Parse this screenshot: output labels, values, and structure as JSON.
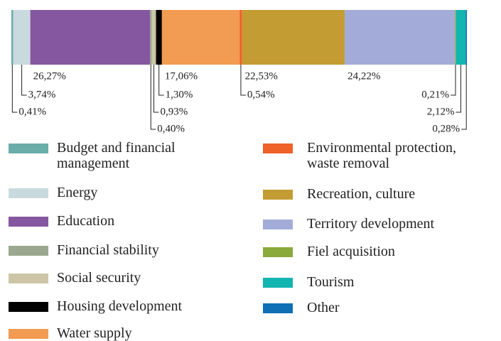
{
  "chart_data": {
    "type": "bar",
    "orientation": "horizontal",
    "stacked": true,
    "xlim": [
      0,
      100
    ],
    "series": [
      {
        "name": "Budget and financial\nmanagement",
        "color": "#6aada9",
        "values": [
          0.41
        ],
        "value_labels": [
          "0,41%"
        ]
      },
      {
        "name": "Energy",
        "color": "#c9dadf",
        "values": [
          3.74
        ],
        "value_labels": [
          "3,74%"
        ]
      },
      {
        "name": "Education",
        "color": "#8557a0",
        "values": [
          26.27
        ],
        "value_labels": [
          "26,27%"
        ]
      },
      {
        "name": "Financial stability",
        "color": "#9aa88f",
        "values": [
          0.4
        ],
        "value_labels": [
          "0,40%"
        ]
      },
      {
        "name": "Social security",
        "color": "#cdc5a8",
        "values": [
          0.93
        ],
        "value_labels": [
          "0,93%"
        ]
      },
      {
        "name": "Housing development",
        "color": "#000000",
        "values": [
          1.3
        ],
        "value_labels": [
          "1,30%"
        ]
      },
      {
        "name": "Water supply",
        "color": "#f29b52",
        "values": [
          17.06
        ],
        "value_labels": [
          "17,06%"
        ]
      },
      {
        "name": "Environmental protection,\nwaste removal",
        "color": "#ee6127",
        "values": [
          0.54
        ],
        "value_labels": [
          "0,54%"
        ]
      },
      {
        "name": "Recreation, culture",
        "color": "#c39d33",
        "values": [
          22.53
        ],
        "value_labels": [
          "22,53%"
        ]
      },
      {
        "name": "Territory development",
        "color": "#a3acd9",
        "values": [
          24.22
        ],
        "value_labels": [
          "24,22%"
        ]
      },
      {
        "name": "Fiel acquisition",
        "color": "#8aaa3b",
        "values": [
          0.21
        ],
        "value_labels": [
          "0,21%"
        ]
      },
      {
        "name": "Tourism",
        "color": "#12b5b0",
        "values": [
          2.12
        ],
        "value_labels": [
          "2,12%"
        ]
      },
      {
        "name": "Other",
        "color": "#0e6fb5",
        "values": [
          0.28
        ],
        "value_labels": [
          "0,28%"
        ]
      }
    ]
  }
}
